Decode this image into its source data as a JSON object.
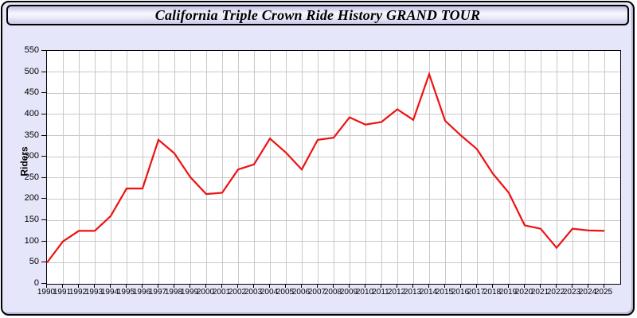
{
  "window": {
    "title": "California Triple Crown Ride History GRAND TOUR"
  },
  "chart_data": {
    "type": "line",
    "title": "California Triple Crown Ride History GRAND TOUR",
    "xlabel": "",
    "ylabel": "Riders",
    "legend": "none",
    "grid": true,
    "xlim": [
      1990,
      2026
    ],
    "ylim": [
      0,
      550
    ],
    "y_ticks": [
      0,
      50,
      100,
      150,
      200,
      250,
      300,
      350,
      400,
      450,
      500,
      550
    ],
    "x": [
      1990,
      1991,
      1992,
      1993,
      1994,
      1995,
      1996,
      1997,
      1998,
      1999,
      2000,
      2001,
      2002,
      2003,
      2004,
      2005,
      2006,
      2007,
      2008,
      2009,
      2010,
      2011,
      2012,
      2013,
      2014,
      2015,
      2016,
      2017,
      2018,
      2019,
      2020,
      2021,
      2022,
      2023,
      2024,
      2025
    ],
    "series": [
      {
        "name": "Riders",
        "values": [
          50,
          100,
          125,
          125,
          160,
          225,
          225,
          340,
          308,
          252,
          212,
          215,
          270,
          282,
          343,
          310,
          270,
          340,
          345,
          393,
          376,
          382,
          412,
          387,
          495,
          385,
          350,
          318,
          260,
          215,
          138,
          130,
          85,
          130,
          126,
          125
        ]
      }
    ],
    "colors": {
      "line": "#ee1111",
      "grid": "#c9c9c9",
      "plot_background": "#ffffff",
      "page_background": "#e6e6fa",
      "frame": "#000000"
    }
  }
}
